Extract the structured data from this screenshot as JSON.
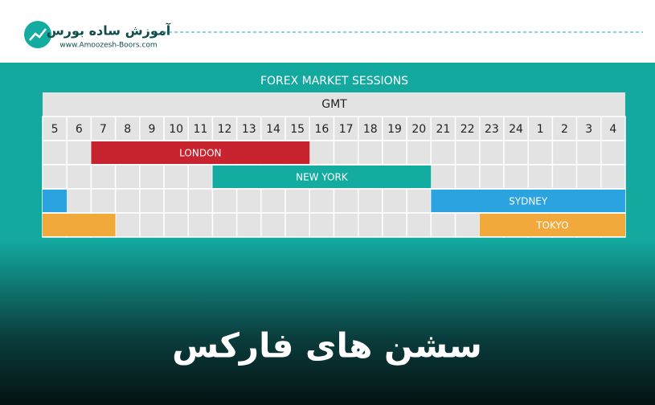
{
  "logo": {
    "name": "آموزش ساده بورس",
    "url": "www.Amoozesh-Boors.com"
  },
  "chart": {
    "title": "FOREX MARKET SESSIONS",
    "timezone": "GMT",
    "hours": [
      5,
      6,
      7,
      8,
      9,
      10,
      11,
      12,
      13,
      14,
      15,
      16,
      17,
      18,
      19,
      20,
      21,
      22,
      23,
      24,
      1,
      2,
      3,
      4
    ],
    "sessions": [
      {
        "name": "LONDON",
        "color": "#c8242f",
        "spans": [
          [
            7,
            15
          ]
        ]
      },
      {
        "name": "NEW YORK",
        "color": "#14aba0",
        "spans": [
          [
            12,
            20
          ]
        ]
      },
      {
        "name": "SYDNEY",
        "color": "#2ba3e0",
        "spans": [
          [
            5,
            5
          ],
          [
            21,
            4
          ]
        ]
      },
      {
        "name": "TOKYO",
        "color": "#f2a93b",
        "spans": [
          [
            5,
            7
          ],
          [
            23,
            4
          ]
        ]
      }
    ]
  },
  "headline": "سشن های فارکس"
}
